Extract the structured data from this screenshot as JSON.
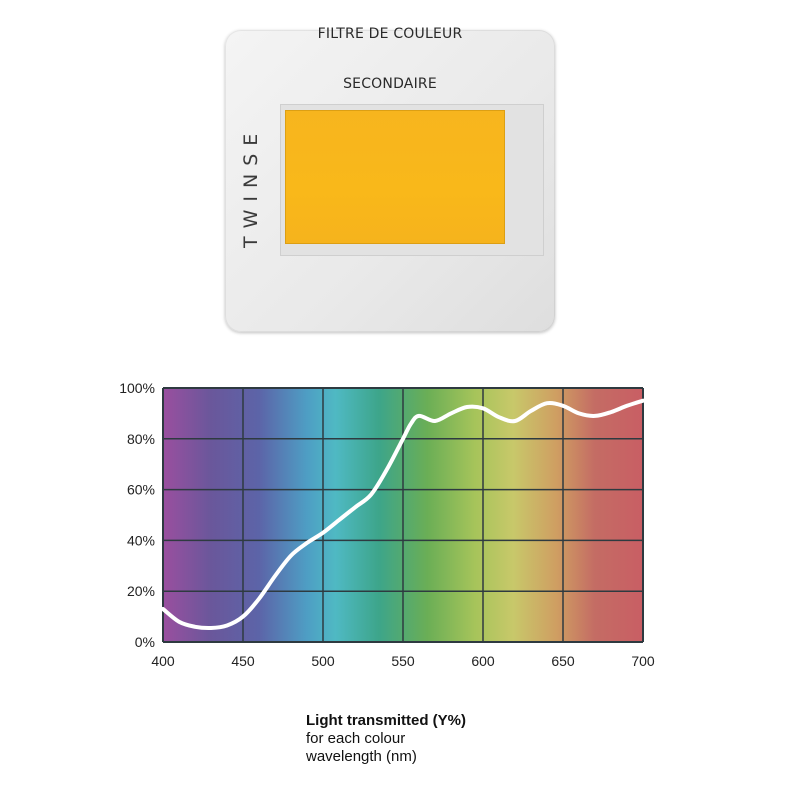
{
  "slide": {
    "title_line1": "FILTRE DE COULEUR",
    "title_line2": "SECONDAIRE",
    "brand": "TWINSE",
    "filter_color": "#F8B61C"
  },
  "caption": {
    "line1": "Light transmitted (Y%)",
    "line2": "for each colour",
    "line3": "wavelength (nm)"
  },
  "chart_data": {
    "type": "line",
    "title": "",
    "xlabel": "",
    "ylabel": "",
    "xlim": [
      400,
      700
    ],
    "ylim": [
      0,
      100
    ],
    "x_ticks": [
      400,
      450,
      500,
      550,
      600,
      650,
      700
    ],
    "y_ticks": [
      0,
      20,
      40,
      60,
      80,
      100
    ],
    "x_tick_labels": [
      "400",
      "450",
      "500",
      "550",
      "600",
      "650",
      "700"
    ],
    "y_tick_labels": [
      "0%",
      "20%",
      "40%",
      "60%",
      "80%",
      "100%"
    ],
    "grid": true,
    "background": "visible spectrum gradient",
    "line_color": "#ffffff",
    "series": [
      {
        "x": [
          400,
          410,
          420,
          430,
          440,
          450,
          460,
          470,
          480,
          490,
          500,
          510,
          520,
          530,
          540,
          550,
          555,
          560,
          570,
          580,
          590,
          600,
          610,
          620,
          630,
          640,
          650,
          660,
          670,
          680,
          690,
          700
        ],
        "values": [
          13,
          8,
          6,
          5.5,
          6.5,
          10,
          17,
          26,
          34,
          39,
          43,
          48,
          53,
          58,
          68,
          80,
          86,
          89,
          87,
          90,
          92.5,
          92,
          88.5,
          87,
          91,
          94,
          93,
          90,
          89,
          90.5,
          93,
          95
        ]
      }
    ]
  }
}
